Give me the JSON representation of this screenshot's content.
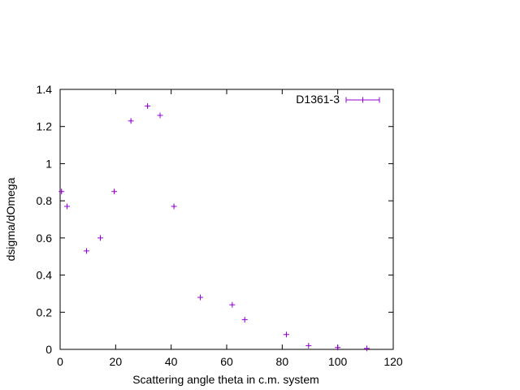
{
  "chart_data": {
    "type": "scatter",
    "title": "",
    "xlabel": "Scattering angle theta in c.m. system",
    "ylabel": "dsigma/dOmega",
    "xlim": [
      0,
      120
    ],
    "ylim": [
      0,
      1.4
    ],
    "x_ticks": [
      "0",
      "20",
      "40",
      "60",
      "80",
      "100",
      "120"
    ],
    "y_ticks": [
      "0",
      "0.2",
      "0.4",
      "0.6",
      "0.8",
      "1",
      "1.2",
      "1.4"
    ],
    "grid": false,
    "legend": "top-right",
    "series": [
      {
        "name": "D1361-3",
        "color": "#9400d3",
        "marker": "plus",
        "x": [
          0.5,
          2.5,
          9.5,
          14.5,
          19.5,
          25.5,
          31.5,
          36,
          41,
          50.5,
          62,
          66.5,
          81.5,
          89.5,
          100,
          110.5
        ],
        "y": [
          0.85,
          0.77,
          0.53,
          0.6,
          0.85,
          1.23,
          1.31,
          1.26,
          0.77,
          0.28,
          0.24,
          0.16,
          0.08,
          0.02,
          0.01,
          0.005
        ],
        "y_err": [
          0.01,
          0.01,
          0.01,
          0.01,
          0.01,
          0.01,
          0.01,
          0.01,
          0.01,
          0.005,
          0.005,
          0.005,
          0.01,
          0.005,
          0.005,
          0.005
        ]
      }
    ]
  }
}
